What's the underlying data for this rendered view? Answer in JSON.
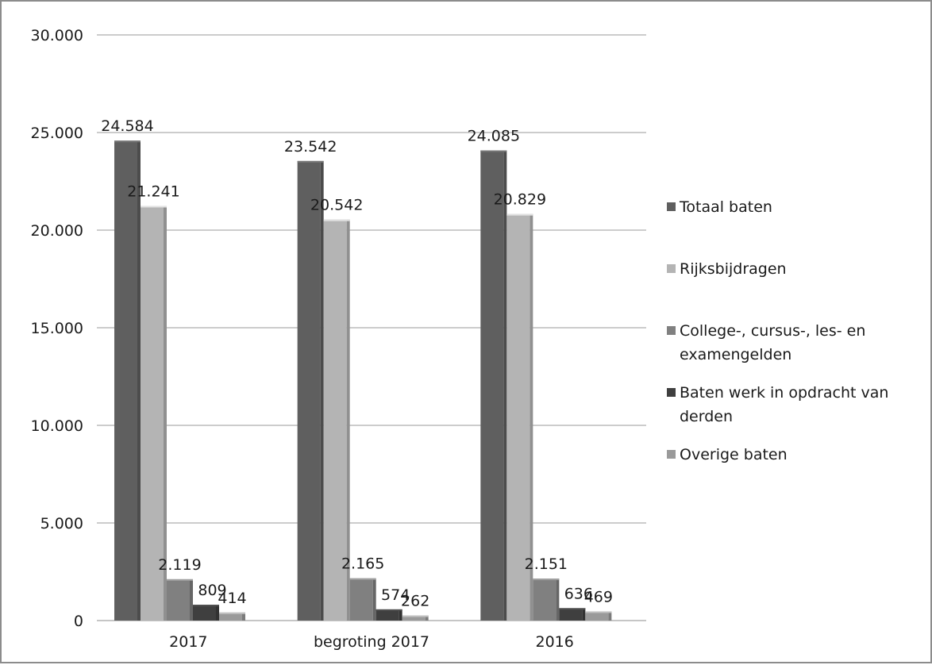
{
  "chart_data": {
    "type": "bar",
    "title": "",
    "xlabel": "",
    "ylabel": "",
    "ylim": [
      0,
      30000
    ],
    "yticks": [
      0,
      5000,
      10000,
      15000,
      20000,
      25000,
      30000
    ],
    "ytick_labels": [
      "0",
      "5.000",
      "10.000",
      "15.000",
      "20.000",
      "25.000",
      "30.000"
    ],
    "grid": true,
    "legend_position": "right",
    "categories": [
      "2017",
      "begroting 2017",
      "2016"
    ],
    "series": [
      {
        "name": "Totaal baten",
        "color": "#5f5f5f",
        "values": [
          24584,
          23542,
          24085
        ],
        "labels": [
          "24.584",
          "23.542",
          "24.085"
        ]
      },
      {
        "name": "Rijksbijdragen",
        "color": "#b4b4b4",
        "values": [
          21241,
          20542,
          20829
        ],
        "labels": [
          "21.241",
          "20.542",
          "20.829"
        ]
      },
      {
        "name": "College-, cursus-, les- en examengelden",
        "color": "#808080",
        "values": [
          2119,
          2165,
          2151
        ],
        "labels": [
          "2.119",
          "2.165",
          "2.151"
        ]
      },
      {
        "name": "Baten werk in opdracht van derden",
        "color": "#3f3f3f",
        "values": [
          809,
          574,
          636
        ],
        "labels": [
          "809",
          "574",
          "636"
        ]
      },
      {
        "name": "Overige baten",
        "color": "#9a9a9a",
        "values": [
          414,
          262,
          469
        ],
        "labels": [
          "414",
          "262",
          "469"
        ]
      }
    ]
  }
}
